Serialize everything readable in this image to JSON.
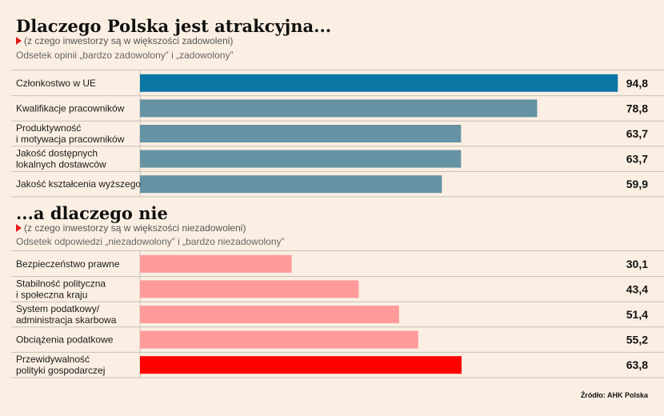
{
  "colors": {
    "background": "#fbefe3",
    "positive_bar": "#6593a3",
    "positive_highlight": "#0a76a3",
    "negative_bar": "#ff9b9b",
    "negative_highlight": "#ff0000",
    "marker": "#e31b1b"
  },
  "source": "Źródło: AHK Polska",
  "chart_data": [
    {
      "type": "bar",
      "orientation": "horizontal",
      "title": "Dlaczego Polska jest atrakcyjna...",
      "subtitle": "(z czego inwestorzy są w większości zadowoleni)",
      "measure": "Odsetek opinii „bardzo zadowolony” i „zadowolony”",
      "categories": [
        "Członkostwo w UE",
        "Kwalifikacje pracowników",
        "Produktywność\ni motywacja pracowników",
        "Jakość dostępnych\nlokalnych dostawców",
        "Jakość kształcenia wyższego"
      ],
      "values": [
        94.8,
        78.8,
        63.7,
        63.7,
        59.9
      ],
      "value_labels": [
        "94,8",
        "78,8",
        "63,7",
        "63,7",
        "59,9"
      ],
      "bar_colors": [
        "#0a76a3",
        "#6593a3",
        "#6593a3",
        "#6593a3",
        "#6593a3"
      ],
      "xlim": [
        0,
        100
      ],
      "grid": false,
      "legend": "none"
    },
    {
      "type": "bar",
      "orientation": "horizontal",
      "title": "...a dlaczego nie",
      "subtitle": "(z czego inwestorzy są w większości niezadowoleni)",
      "measure": "Odsetek odpowiedzi „niezadowolony” i „bardzo niezadowolony”",
      "categories": [
        "Bezpieczeństwo prawne",
        "Stabilność polityczna\ni społeczna kraju",
        "System podatkowy/\nadministracja skarbowa",
        "Obciążenia podatkowe",
        "Przewidywalność\npolityki gospodarczej"
      ],
      "values": [
        30.1,
        43.4,
        51.4,
        55.2,
        63.8
      ],
      "value_labels": [
        "30,1",
        "43,4",
        "51,4",
        "55,2",
        "63,8"
      ],
      "bar_colors": [
        "#ff9b9b",
        "#ff9b9b",
        "#ff9b9b",
        "#ff9b9b",
        "#ff0000"
      ],
      "xlim": [
        0,
        100
      ],
      "grid": false,
      "legend": "none"
    }
  ]
}
